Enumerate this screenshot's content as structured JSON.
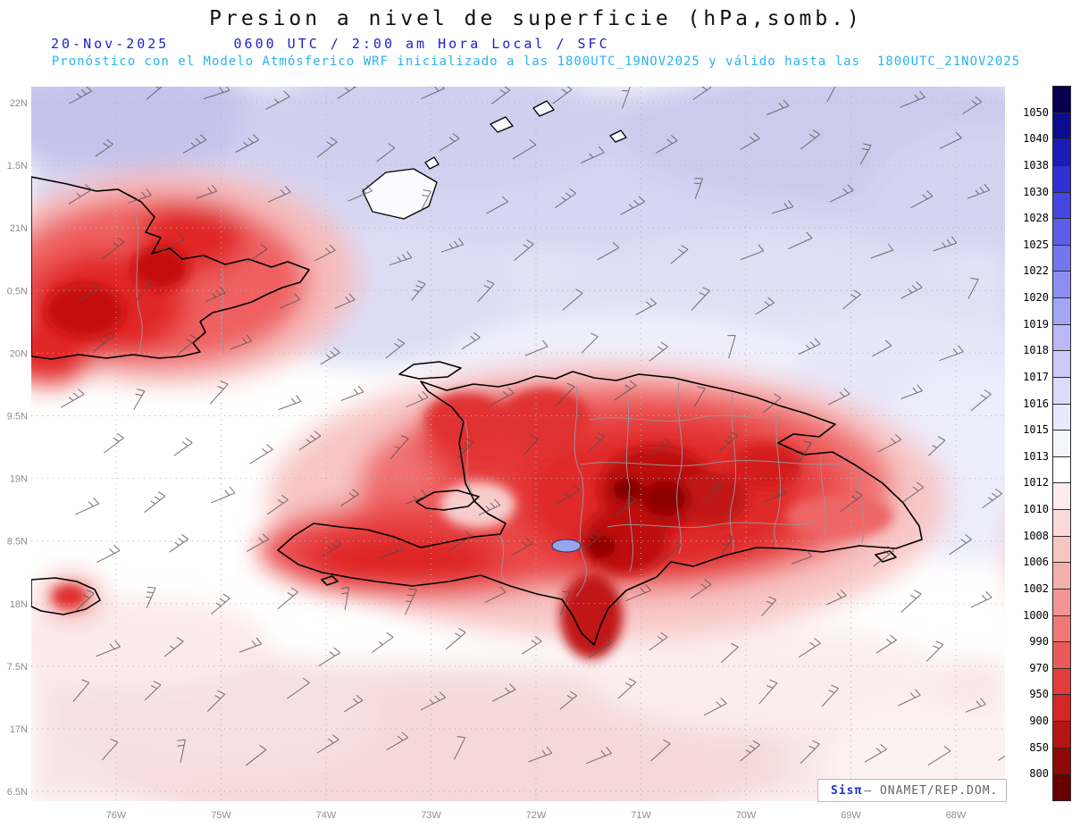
{
  "header": {
    "title": "Presion a nivel de superficie (hPa,somb.)",
    "datetime_line": "20-Nov-2025      0600 UTC / 2:00 am Hora Local / SFC",
    "forecast_line": "Pronóstico con el Modelo Atmósferico WRF inicializado a las 1800UTC_19NOV2025 y válido hasta las  1800UTC_21NOV2025"
  },
  "map": {
    "lat_ticks": [
      "22N",
      "1.5N",
      "21N",
      "0.5N",
      "20N",
      "9.5N",
      "19N",
      "8.5N",
      "18N",
      "7.5N",
      "17N",
      "6.5N"
    ],
    "lon_ticks": [
      "76W",
      "75W",
      "74W",
      "73W",
      "72W",
      "71W",
      "70W",
      "69W",
      "68W"
    ],
    "units": "hPa"
  },
  "colorbar": {
    "labels": [
      "1050",
      "1040",
      "1038",
      "1030",
      "1028",
      "1025",
      "1022",
      "1020",
      "1019",
      "1018",
      "1017",
      "1016",
      "1015",
      "1013",
      "1012",
      "1010",
      "1008",
      "1006",
      "1002",
      "1000",
      "990",
      "970",
      "950",
      "900",
      "850",
      "800"
    ],
    "colors": [
      "#05004f",
      "#0d0d91",
      "#1c1cb6",
      "#3030d2",
      "#4646e0",
      "#5d5de9",
      "#7575ee",
      "#8e8ef2",
      "#a5a5f5",
      "#b9b9f7",
      "#cbcbf9",
      "#dbdbfb",
      "#e9e9fd",
      "#f5f5fe",
      "#ffffff",
      "#fdeaea",
      "#fbd9d9",
      "#f8c5c5",
      "#f5aeae",
      "#f29494",
      "#ee7878",
      "#ea5a5a",
      "#e43c3c",
      "#d62525",
      "#b51414",
      "#8f0808",
      "#650101"
    ]
  },
  "watermark": {
    "brand": "Sisπ",
    "rest": "– ONAMET/REP.DOM."
  },
  "accent_colors": {
    "date_blue": "#2020cc",
    "forecast_cyan": "#29b2f0",
    "low_pressure_red": "#d62525",
    "high_pressure_blue": "#3030d2"
  }
}
